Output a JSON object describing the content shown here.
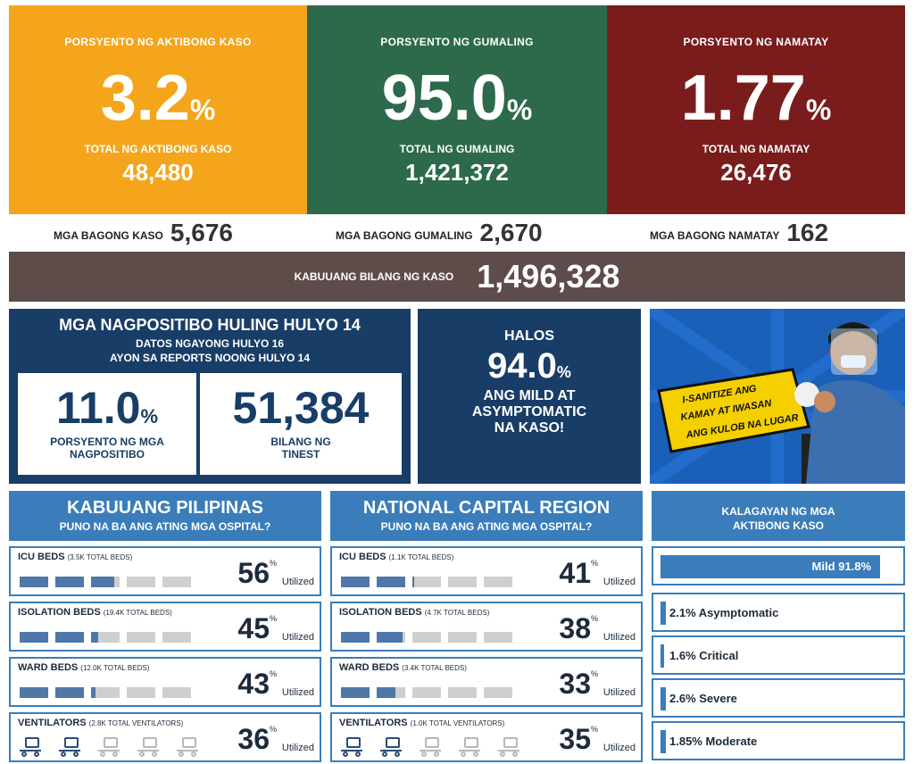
{
  "cards": {
    "active": {
      "title": "PORSYENTO NG AKTIBONG KASO",
      "percent": "3.2",
      "pct_sign": "%",
      "total_label": "TOTAL NG AKTIBONG KASO",
      "total": "48,480",
      "color": "#f4a51c"
    },
    "recovered": {
      "title": "PORSYENTO NG GUMALING",
      "percent": "95.0",
      "pct_sign": "%",
      "total_label": "TOTAL NG GUMALING",
      "total": "1,421,372",
      "color": "#2c6a4b"
    },
    "deaths": {
      "title": "PORSYENTO NG NAMATAY",
      "percent": "1.77",
      "pct_sign": "%",
      "total_label": "TOTAL NG NAMATAY",
      "total": "26,476",
      "color": "#7a1c1c"
    }
  },
  "new": {
    "cases_label": "MGA BAGONG KASO",
    "cases": "5,676",
    "recovered_label": "MGA BAGONG GUMALING",
    "recovered": "2,670",
    "deaths_label": "MGA BAGONG NAMATAY",
    "deaths": "162"
  },
  "total": {
    "label": "KABUUANG BILANG NG KASO",
    "value": "1,496,328"
  },
  "positivity": {
    "title": "MGA NAGPOSITIBO HULING HULYO 14",
    "sub1": "DATOS NGAYONG HULYO 16",
    "sub2": "AYON SA REPORTS NOONG HULYO 14",
    "rate": "11.0",
    "rate_sign": "%",
    "rate_label1": "PORSYENTO NG MGA",
    "rate_label2": "NAGPOSITIBO",
    "tested": "51,384",
    "tested_label1": "BILANG NG",
    "tested_label2": "TINEST"
  },
  "mild": {
    "line1": "HALOS",
    "value": "94.0",
    "sign": "%",
    "line2": "ANG MILD AT",
    "line3": "ASYMPTOMATIC",
    "line4": "NA KASO!"
  },
  "poster": {
    "text1": "I-SANITIZE ANG",
    "text2": "KAMAY AT IWASAN",
    "text3": "ANG KULOB NA LUGAR"
  },
  "ph": {
    "title": "KABUUANG PILIPINAS",
    "subtitle": "PUNO NA BA ANG ATING MGA OSPITAL?",
    "rows": [
      {
        "label": "ICU BEDS",
        "note": "(3.5K TOTAL BEDS)",
        "pct": "56",
        "util": 0.56
      },
      {
        "label": "ISOLATION BEDS",
        "note": "(19.4K TOTAL BEDS)",
        "pct": "45",
        "util": 0.45
      },
      {
        "label": "WARD BEDS",
        "note": "(12.0K TOTAL BEDS)",
        "pct": "43",
        "util": 0.43
      },
      {
        "label": "VENTILATORS",
        "note": "(2.8K TOTAL VENTILATORS)",
        "pct": "36",
        "util": 0.36
      }
    ]
  },
  "ncr": {
    "title": "NATIONAL CAPITAL REGION",
    "subtitle": "PUNO NA BA ANG ATING MGA OSPITAL?",
    "rows": [
      {
        "label": "ICU BEDS",
        "note": "(1.1K TOTAL BEDS)",
        "pct": "41",
        "util": 0.41
      },
      {
        "label": "ISOLATION BEDS",
        "note": "(4.7K TOTAL BEDS)",
        "pct": "38",
        "util": 0.38
      },
      {
        "label": "WARD BEDS",
        "note": "(3.4K TOTAL BEDS)",
        "pct": "33",
        "util": 0.33
      },
      {
        "label": "VENTILATORS",
        "note": "(1.0K TOTAL VENTILATORS)",
        "pct": "35",
        "util": 0.35
      }
    ]
  },
  "pct_symbol": "%",
  "utilized": "Utilized",
  "status": {
    "title1": "KALAGAYAN NG MGA",
    "title2": "AKTIBONG KASO",
    "items": [
      {
        "text": "Mild 91.8%",
        "value": 0.918
      },
      {
        "text": "2.1% Asymptomatic",
        "value": 0.021
      },
      {
        "text": "1.6% Critical",
        "value": 0.016
      },
      {
        "text": "2.6% Severe",
        "value": 0.026
      },
      {
        "text": "1.85% Moderate",
        "value": 0.0185
      }
    ]
  }
}
